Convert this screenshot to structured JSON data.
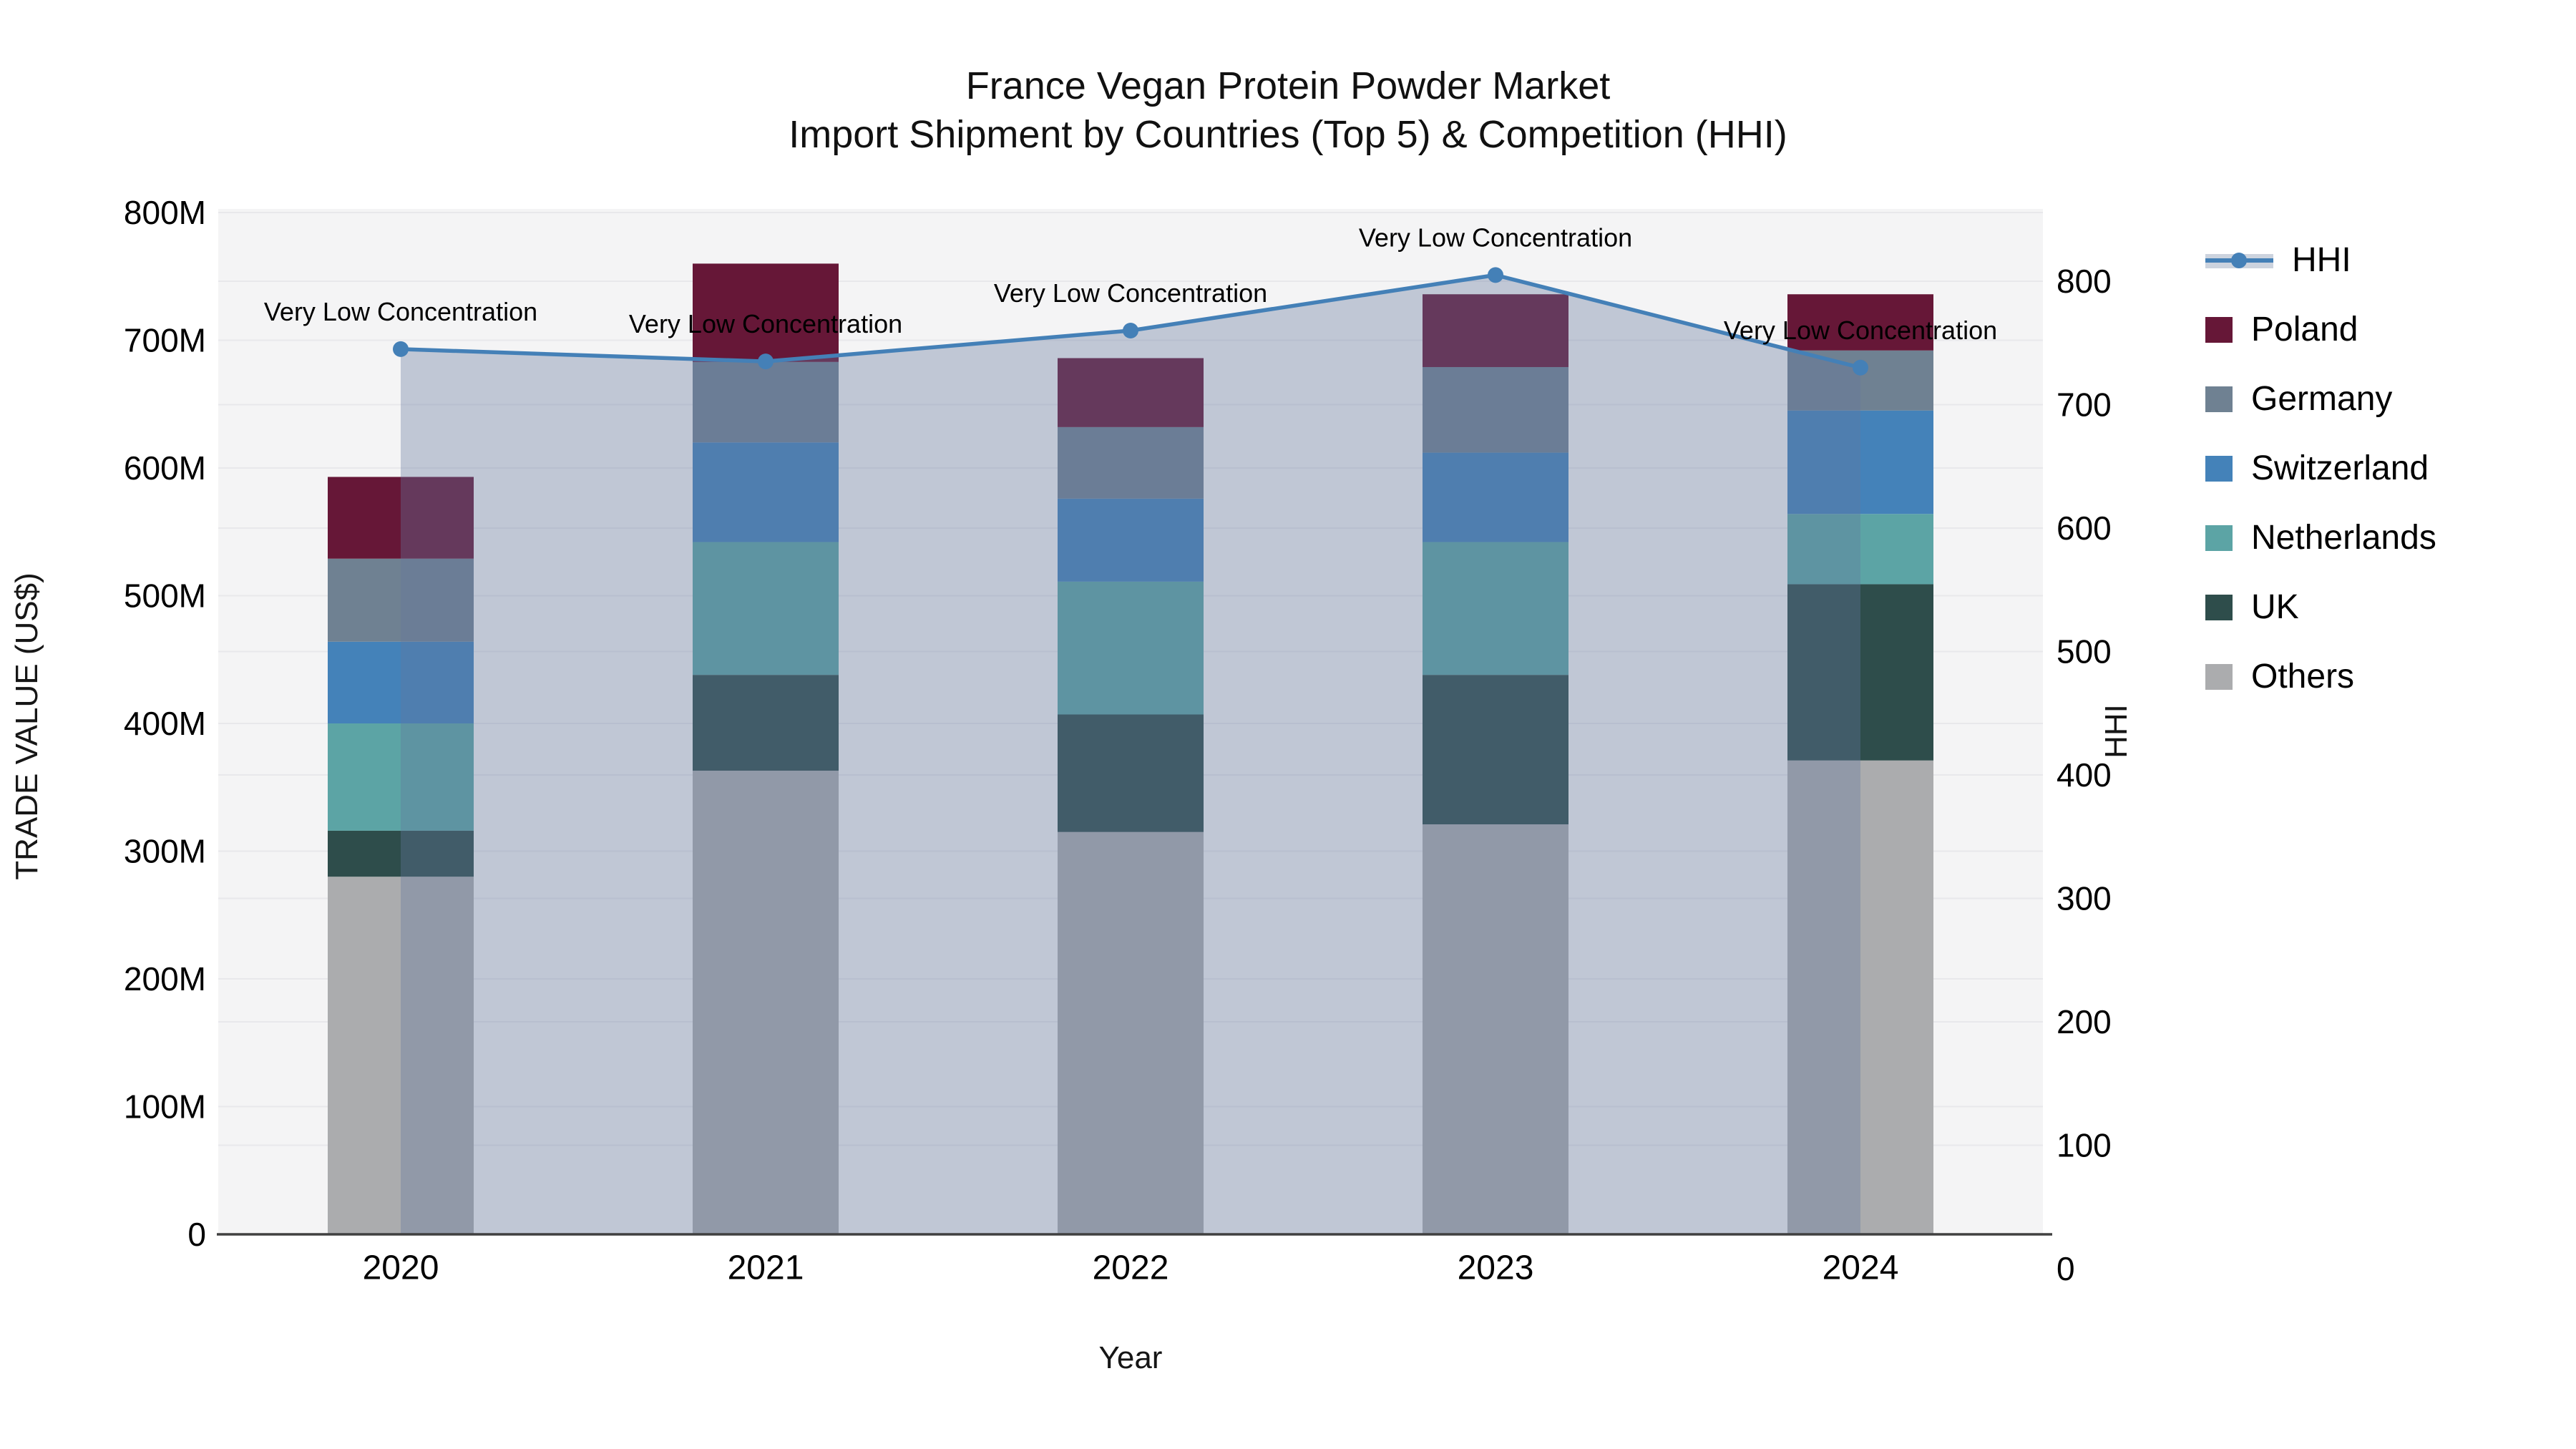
{
  "chart": {
    "title_line1": "France Vegan Protein Powder Market",
    "title_line2": "Import Shipment by Countries (Top 5) & Competition (HHI)"
  },
  "axes": {
    "x_title": "Year",
    "left_title": "TRADE VALUE (US$)",
    "right_title": "HHI",
    "x_ticks": [
      "2020",
      "2021",
      "2022",
      "2023",
      "2024"
    ],
    "left_ticks": [
      "0",
      "100M",
      "200M",
      "300M",
      "400M",
      "500M",
      "600M",
      "700M",
      "800M"
    ],
    "left_tick_values": [
      0,
      100,
      200,
      300,
      400,
      500,
      600,
      700,
      800
    ],
    "right_ticks": [
      "0",
      "100",
      "200",
      "300",
      "400",
      "500",
      "600",
      "700",
      "800"
    ],
    "right_tick_values": [
      0,
      100,
      200,
      300,
      400,
      500,
      600,
      700,
      800
    ]
  },
  "legend": {
    "items": [
      {
        "label": "HHI",
        "type": "line"
      },
      {
        "label": "Poland",
        "type": "square",
        "color": "#661737"
      },
      {
        "label": "Germany",
        "type": "square",
        "color": "#6f8192"
      },
      {
        "label": "Switzerland",
        "type": "square",
        "color": "#4482b9"
      },
      {
        "label": "Netherlands",
        "type": "square",
        "color": "#5ca4a5"
      },
      {
        "label": "UK",
        "type": "square",
        "color": "#2e4d4b"
      },
      {
        "label": "Others",
        "type": "square",
        "color": "#abacae"
      }
    ]
  },
  "chart_data": {
    "type": "bar",
    "subtype": "stacked-bar-with-line",
    "title": "France Vegan Protein Powder Market Import Shipment by Countries (Top 5) & Competition (HHI)",
    "xlabel": "Year",
    "ylabel_left": "TRADE VALUE (US$)",
    "ylabel_right": "HHI",
    "categories": [
      "2020",
      "2021",
      "2022",
      "2023",
      "2024"
    ],
    "bar_unit": "M US$",
    "stack_order_bottom_to_top": [
      "Others",
      "UK",
      "Netherlands",
      "Switzerland",
      "Germany",
      "Poland"
    ],
    "series": [
      {
        "name": "Others",
        "values": [
          280,
          363,
          315,
          321,
          371
        ]
      },
      {
        "name": "UK",
        "values": [
          36,
          75,
          92,
          117,
          138
        ]
      },
      {
        "name": "Netherlands",
        "values": [
          84,
          104,
          104,
          104,
          55
        ]
      },
      {
        "name": "Switzerland",
        "values": [
          64,
          78,
          65,
          70,
          81
        ]
      },
      {
        "name": "Germany",
        "values": [
          65,
          63,
          56,
          67,
          47
        ]
      },
      {
        "name": "Poland",
        "values": [
          64,
          77,
          54,
          57,
          44
        ]
      }
    ],
    "bar_totals": [
      593,
      760,
      686,
      736,
      736
    ],
    "line_series": {
      "name": "HHI",
      "axis": "right",
      "values": [
        745,
        735,
        760,
        805,
        730
      ]
    },
    "annotations": [
      "Very Low Concentration",
      "Very Low Concentration",
      "Very Low Concentration",
      "Very Low Concentration",
      "Very Low Concentration"
    ],
    "ylim_left": [
      0,
      818
    ],
    "ylim_right": [
      0,
      850
    ],
    "grid": true,
    "legend_position": "right"
  },
  "colors": {
    "plot_bg": "#f4f4f5",
    "grid": "#e8e8eb",
    "axis_line": "#404040",
    "hhi_line": "#4480b7",
    "hhi_area": "rgba(100,120,158,0.36)",
    "hhi_area_solid": "#ccd3de",
    "tick_text": "#000000",
    "Others": "#abacae",
    "UK": "#2e4d4b",
    "Netherlands": "#5ca4a5",
    "Switzerland": "#4482b9",
    "Germany": "#6f8192",
    "Poland": "#661737"
  }
}
